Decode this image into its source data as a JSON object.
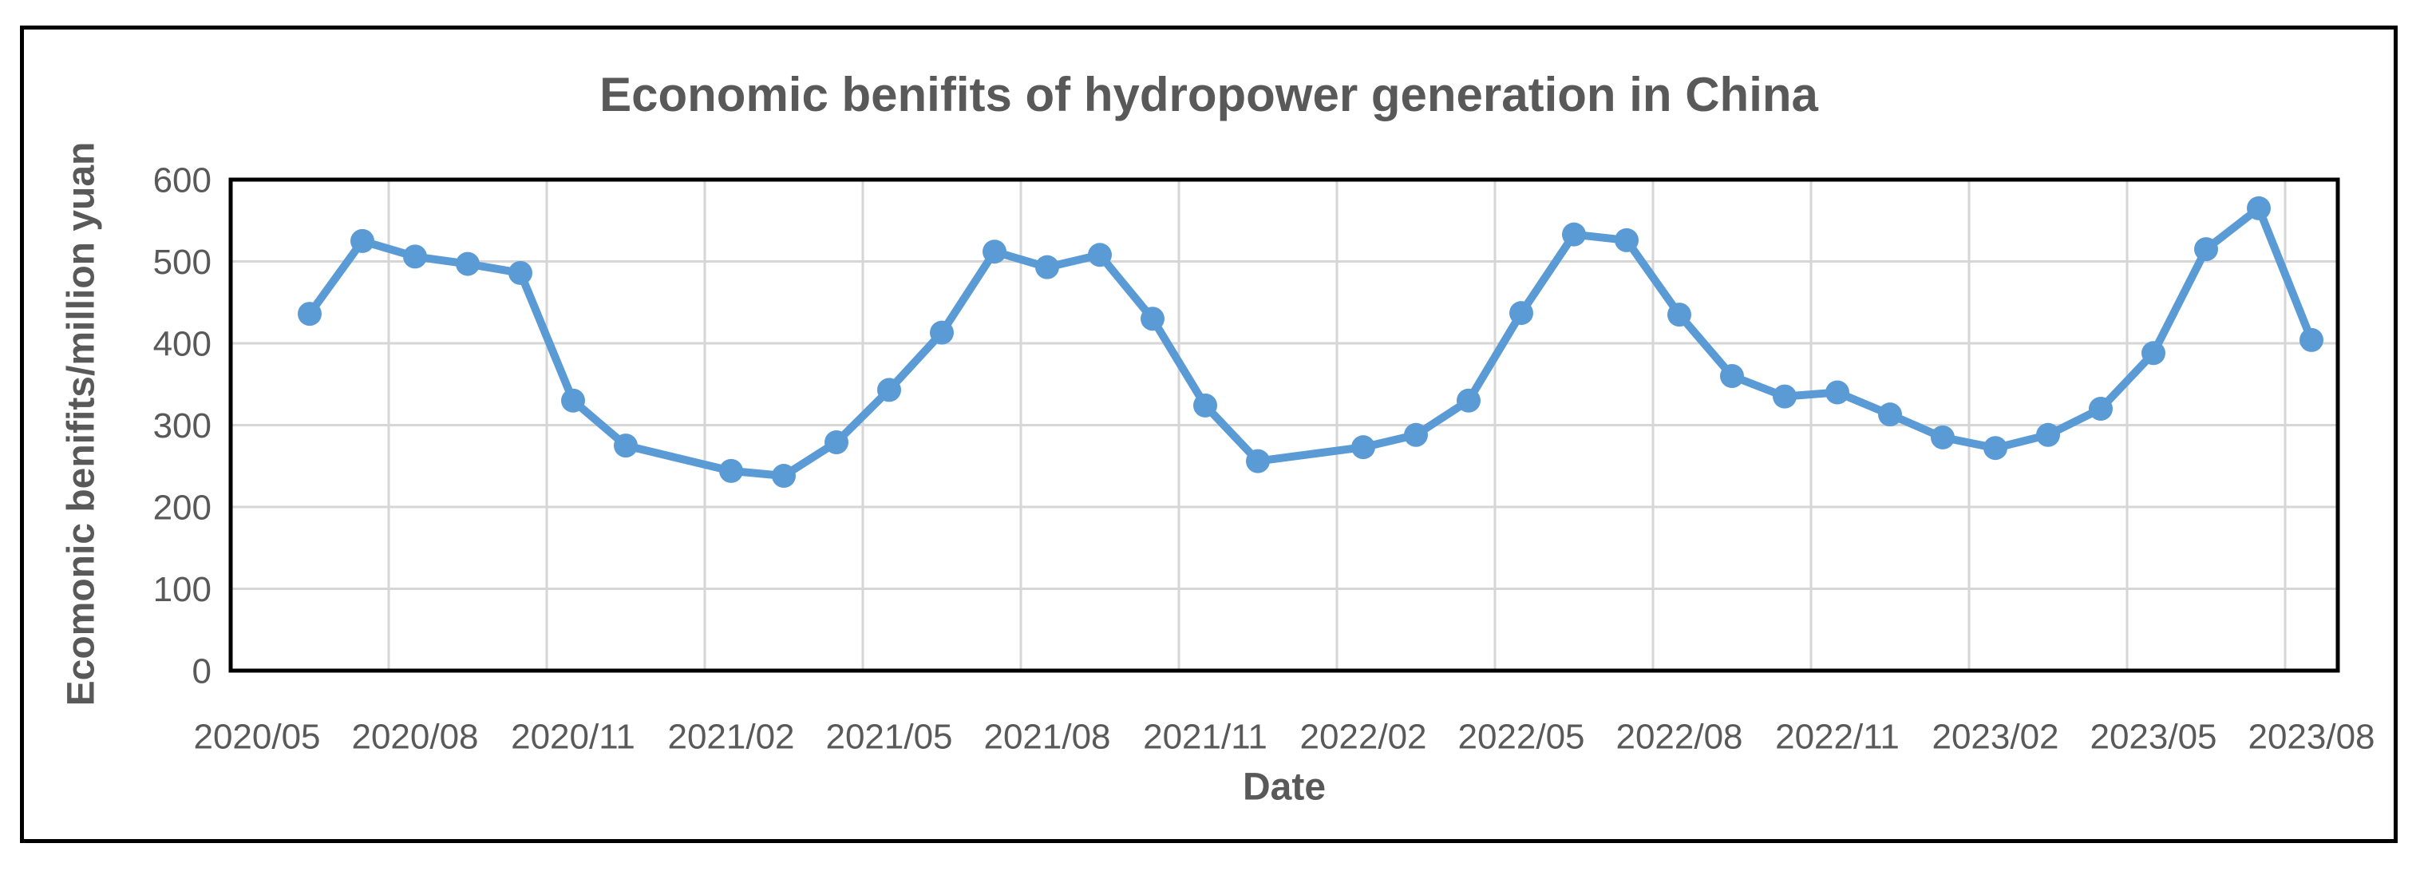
{
  "chart": {
    "title": "Economic benifits of hydropower generation in China",
    "x_axis_label": "Date",
    "y_axis_label": "Ecomonic benifits/million yuan"
  },
  "style": {
    "line_color": "#5B9BD5",
    "marker_color": "#5B9BD5",
    "grid_color": "#D6D6D6",
    "text_color": "#595959",
    "border_color": "#000000",
    "background": "#FFFFFF"
  },
  "chart_data": {
    "type": "line",
    "title": "Economic benifits of hydropower generation in China",
    "xlabel": "Date",
    "ylabel": "Ecomonic benifits/million yuan",
    "ylim": [
      0,
      600
    ],
    "y_ticks": [
      0,
      100,
      200,
      300,
      400,
      500,
      600
    ],
    "x_tick_labels": [
      "2020/05",
      "2020/08",
      "2020/11",
      "2021/02",
      "2021/05",
      "2021/08",
      "2021/11",
      "2022/02",
      "2022/05",
      "2022/08",
      "2022/11",
      "2023/02",
      "2023/05",
      "2023/08"
    ],
    "x_axis_start": "2020/05",
    "grid": true,
    "legend": "none",
    "marker": "circle",
    "points": [
      {
        "date": "2020/06",
        "value": 436
      },
      {
        "date": "2020/07",
        "value": 525
      },
      {
        "date": "2020/08",
        "value": 506
      },
      {
        "date": "2020/09",
        "value": 497
      },
      {
        "date": "2020/10",
        "value": 486
      },
      {
        "date": "2020/11",
        "value": 330
      },
      {
        "date": "2020/12",
        "value": 275
      },
      {
        "date": "2021/01",
        "value": null
      },
      {
        "date": "2021/02",
        "value": 244
      },
      {
        "date": "2021/03",
        "value": 238
      },
      {
        "date": "2021/04",
        "value": 279
      },
      {
        "date": "2021/05",
        "value": 343
      },
      {
        "date": "2021/06",
        "value": 413
      },
      {
        "date": "2021/07",
        "value": 512
      },
      {
        "date": "2021/08",
        "value": 493
      },
      {
        "date": "2021/09",
        "value": 508
      },
      {
        "date": "2021/10",
        "value": 430
      },
      {
        "date": "2021/11",
        "value": 324
      },
      {
        "date": "2021/12",
        "value": 256
      },
      {
        "date": "2022/01",
        "value": null
      },
      {
        "date": "2022/02",
        "value": 273
      },
      {
        "date": "2022/03",
        "value": 288
      },
      {
        "date": "2022/04",
        "value": 330
      },
      {
        "date": "2022/05",
        "value": 437
      },
      {
        "date": "2022/06",
        "value": 533
      },
      {
        "date": "2022/07",
        "value": 526
      },
      {
        "date": "2022/08",
        "value": 435
      },
      {
        "date": "2022/09",
        "value": 360
      },
      {
        "date": "2022/10",
        "value": 335
      },
      {
        "date": "2022/11",
        "value": 340
      },
      {
        "date": "2022/12",
        "value": 313
      },
      {
        "date": "2023/01",
        "value": 285
      },
      {
        "date": "2023/02",
        "value": 272
      },
      {
        "date": "2023/03",
        "value": 288
      },
      {
        "date": "2023/04",
        "value": 320
      },
      {
        "date": "2023/05",
        "value": 388
      },
      {
        "date": "2023/06",
        "value": 515
      },
      {
        "date": "2023/07",
        "value": 565
      },
      {
        "date": "2023/08",
        "value": 404
      }
    ]
  }
}
